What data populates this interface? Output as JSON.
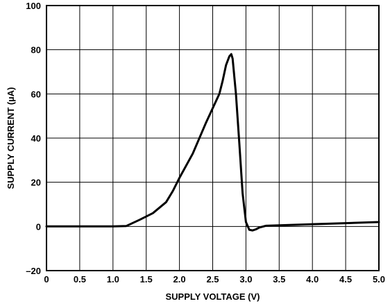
{
  "chart_data": {
    "type": "line",
    "title": "",
    "xlabel": "SUPPLY VOLTAGE (V)",
    "ylabel": "SUPPLY CURRENT (µA)",
    "xlim": [
      0,
      5.0
    ],
    "ylim": [
      -20,
      100
    ],
    "x_ticks": [
      0,
      0.5,
      1.0,
      1.5,
      2.0,
      2.5,
      3.0,
      3.5,
      4.0,
      4.5,
      5.0
    ],
    "x_tick_labels": [
      "0",
      "0.5",
      "1.0",
      "1.5",
      "2.0",
      "2.5",
      "3.0",
      "3.5",
      "4.0",
      "4.5",
      "5.0"
    ],
    "y_ticks": [
      -20,
      0,
      20,
      40,
      60,
      80,
      100
    ],
    "y_tick_labels": [
      "–20",
      "0",
      "20",
      "40",
      "60",
      "80",
      "100"
    ],
    "grid": true,
    "series": [
      {
        "x": [
          0,
          0.5,
          1.0,
          1.2,
          1.4,
          1.6,
          1.8,
          1.9,
          2.0,
          2.2,
          2.4,
          2.6,
          2.65,
          2.7,
          2.75,
          2.78,
          2.8,
          2.85,
          2.9,
          2.95,
          3.0,
          3.05,
          3.1,
          3.15,
          3.2,
          3.3,
          3.5,
          4.0,
          4.5,
          5.0
        ],
        "y": [
          0,
          0,
          0,
          0.2,
          3,
          6,
          11,
          16,
          22,
          33,
          47,
          60,
          66,
          73,
          77,
          78,
          76,
          60,
          38,
          15,
          2,
          -1.5,
          -1.8,
          -1.3,
          -0.5,
          0.3,
          0.5,
          1.0,
          1.5,
          2.0
        ]
      }
    ]
  }
}
